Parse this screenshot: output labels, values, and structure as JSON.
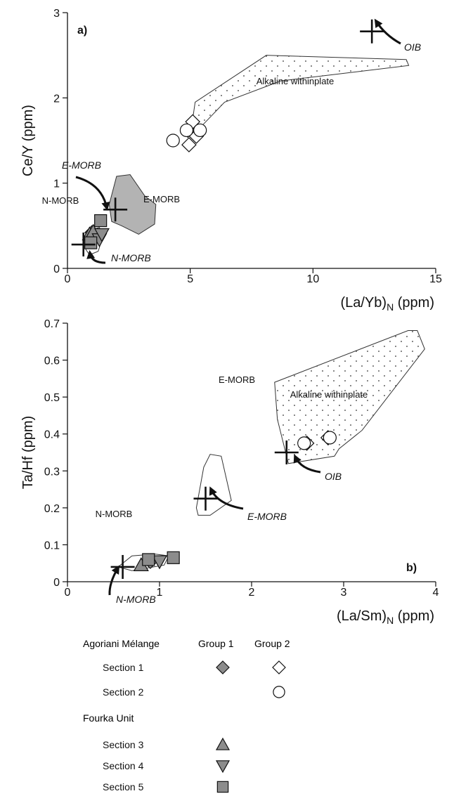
{
  "chart_data": [
    {
      "type": "scatter",
      "panel_label": "a)",
      "xlabel": "(La/Yb)",
      "xlabel_sub": "N",
      "xlabel_unit": " (ppm)",
      "ylabel": "Ce/Y (ppm)",
      "xlim": [
        0,
        15
      ],
      "ylim": [
        0,
        3
      ],
      "xticks": [
        0,
        5,
        10,
        15
      ],
      "xtick_labels": [
        "0",
        "5",
        "10",
        "15"
      ],
      "yticks": [
        0,
        1,
        2,
        3
      ],
      "ytick_labels": [
        "0",
        "1",
        "2",
        "3"
      ],
      "fields": [
        {
          "name": "Alkaline withinplate",
          "fill": "dotted",
          "polygon": [
            [
              5.1,
              1.75
            ],
            [
              5.2,
              1.95
            ],
            [
              8.1,
              2.5
            ],
            [
              13.8,
              2.45
            ],
            [
              13.9,
              2.38
            ],
            [
              8.7,
              2.2
            ],
            [
              6.4,
              1.95
            ],
            [
              5.4,
              1.65
            ]
          ]
        },
        {
          "name": "E-MORB",
          "fill": "gray",
          "polygon": [
            [
              1.7,
              0.75
            ],
            [
              2.0,
              1.08
            ],
            [
              2.55,
              1.1
            ],
            [
              3.15,
              0.85
            ],
            [
              3.6,
              0.75
            ],
            [
              3.55,
              0.52
            ],
            [
              2.9,
              0.4
            ],
            [
              2.2,
              0.5
            ],
            [
              1.8,
              0.55
            ]
          ]
        },
        {
          "name": "N-MORB",
          "fill": "none",
          "polygon": [
            [
              0.75,
              0.22
            ],
            [
              0.95,
              0.45
            ],
            [
              1.3,
              0.48
            ],
            [
              1.45,
              0.38
            ],
            [
              1.25,
              0.2
            ],
            [
              0.9,
              0.16
            ]
          ]
        }
      ],
      "references": [
        {
          "name": "OIB",
          "x": 12.4,
          "y": 2.78
        },
        {
          "name": "E-MORB",
          "x": 1.95,
          "y": 0.69
        },
        {
          "name": "N-MORB",
          "x": 0.65,
          "y": 0.28
        }
      ],
      "series": [
        {
          "name": "Section 1 Group 1",
          "marker": "diamond",
          "filled": true,
          "points": [
            [
              1.0,
              0.42
            ],
            [
              1.15,
              0.38
            ]
          ]
        },
        {
          "name": "Section 1 Group 2",
          "marker": "diamond",
          "filled": false,
          "points": [
            [
              4.9,
              1.62
            ],
            [
              5.1,
              1.72
            ],
            [
              5.25,
              1.55
            ],
            [
              4.95,
              1.45
            ]
          ]
        },
        {
          "name": "Section 2 Group 2",
          "marker": "circle",
          "filled": false,
          "points": [
            [
              4.3,
              1.5
            ],
            [
              4.85,
              1.62
            ],
            [
              5.4,
              1.62
            ]
          ]
        },
        {
          "name": "Section 3 Group 1",
          "marker": "triangle-up",
          "filled": true,
          "points": [
            [
              0.9,
              0.4
            ],
            [
              1.05,
              0.43
            ]
          ]
        },
        {
          "name": "Section 4 Group 1",
          "marker": "triangle-down",
          "filled": true,
          "points": [
            [
              1.3,
              0.34
            ],
            [
              1.4,
              0.4
            ]
          ]
        },
        {
          "name": "Section 5 Group 1",
          "marker": "square",
          "filled": true,
          "points": [
            [
              0.95,
              0.3
            ],
            [
              1.35,
              0.56
            ]
          ]
        }
      ]
    },
    {
      "type": "scatter",
      "panel_label": "b)",
      "xlabel": "(La/Sm)",
      "xlabel_sub": "N",
      "xlabel_unit": " (ppm)",
      "ylabel": "Ta/Hf (ppm)",
      "xlim": [
        0,
        4
      ],
      "ylim": [
        0,
        0.7
      ],
      "xticks": [
        0,
        1,
        2,
        3,
        4
      ],
      "xtick_labels": [
        "0",
        "1",
        "2",
        "3",
        "4"
      ],
      "yticks": [
        0,
        0.1,
        0.2,
        0.3,
        0.4,
        0.5,
        0.6,
        0.7
      ],
      "ytick_labels": [
        "0",
        "0.1",
        "0.2",
        "0.3",
        "0.4",
        "0.5",
        "0.6",
        "0.7"
      ],
      "fields": [
        {
          "name": "Alkaline withinplate",
          "fill": "dotted",
          "polygon": [
            [
              2.25,
              0.54
            ],
            [
              3.7,
              0.68
            ],
            [
              3.8,
              0.68
            ],
            [
              3.88,
              0.63
            ],
            [
              3.2,
              0.41
            ],
            [
              2.95,
              0.36
            ],
            [
              2.9,
              0.34
            ],
            [
              2.4,
              0.32
            ],
            [
              2.28,
              0.44
            ]
          ]
        },
        {
          "name": "E-MORB",
          "fill": "none",
          "polygon": [
            [
              1.4,
              0.2
            ],
            [
              1.48,
              0.31
            ],
            [
              1.55,
              0.345
            ],
            [
              1.67,
              0.34
            ],
            [
              1.78,
              0.22
            ],
            [
              1.55,
              0.18
            ],
            [
              1.42,
              0.18
            ]
          ]
        },
        {
          "name": "N-MORB",
          "fill": "none",
          "polygon": [
            [
              0.55,
              0.04
            ],
            [
              0.7,
              0.07
            ],
            [
              0.95,
              0.075
            ],
            [
              1.1,
              0.07
            ],
            [
              1.05,
              0.045
            ],
            [
              0.7,
              0.03
            ]
          ]
        }
      ],
      "references": [
        {
          "name": "OIB",
          "x": 2.38,
          "y": 0.35
        },
        {
          "name": "E-MORB",
          "x": 1.5,
          "y": 0.225
        },
        {
          "name": "N-MORB",
          "x": 0.6,
          "y": 0.04
        }
      ],
      "series": [
        {
          "name": "Section 1 Group 1",
          "marker": "diamond",
          "filled": true,
          "points": [
            [
              0.9,
              0.055
            ]
          ]
        },
        {
          "name": "Section 1 Group 2",
          "marker": "diamond",
          "filled": false,
          "points": [
            [
              2.6,
              0.375
            ],
            [
              2.83,
              0.39
            ]
          ]
        },
        {
          "name": "Section 2 Group 2",
          "marker": "circle",
          "filled": false,
          "points": [
            [
              2.57,
              0.375
            ],
            [
              2.85,
              0.39
            ]
          ]
        },
        {
          "name": "Section 3 Group 1",
          "marker": "triangle-up",
          "filled": true,
          "points": [
            [
              0.8,
              0.045
            ]
          ]
        },
        {
          "name": "Section 4 Group 1",
          "marker": "triangle-down",
          "filled": true,
          "points": [
            [
              1.0,
              0.055
            ]
          ]
        },
        {
          "name": "Section 5 Group 1",
          "marker": "square",
          "filled": true,
          "points": [
            [
              0.88,
              0.06
            ],
            [
              1.15,
              0.065
            ]
          ]
        }
      ]
    }
  ],
  "legend": {
    "header_group": "Agoriani Mélange",
    "col1": "Group 1",
    "col2": "Group 2",
    "subheader": "Fourka Unit",
    "rows": [
      {
        "label": "Section 1",
        "g1": "diamond",
        "g2": "diamond",
        "g1_filled": true,
        "g2_filled": false
      },
      {
        "label": "Section 2",
        "g1": "",
        "g2": "circle",
        "g1_filled": true,
        "g2_filled": false
      },
      {
        "label": "Section 3",
        "g1": "triangle-up",
        "g2": "",
        "g1_filled": true,
        "g2_filled": false
      },
      {
        "label": "Section 4",
        "g1": "triangle-down",
        "g2": "",
        "g1_filled": true,
        "g2_filled": false
      },
      {
        "label": "Section 5",
        "g1": "square",
        "g2": "",
        "g1_filled": true,
        "g2_filled": false
      }
    ]
  },
  "colors": {
    "marker_fill": "#8c8c8c",
    "field_gray": "#b3b3b3",
    "ink": "#111111"
  }
}
